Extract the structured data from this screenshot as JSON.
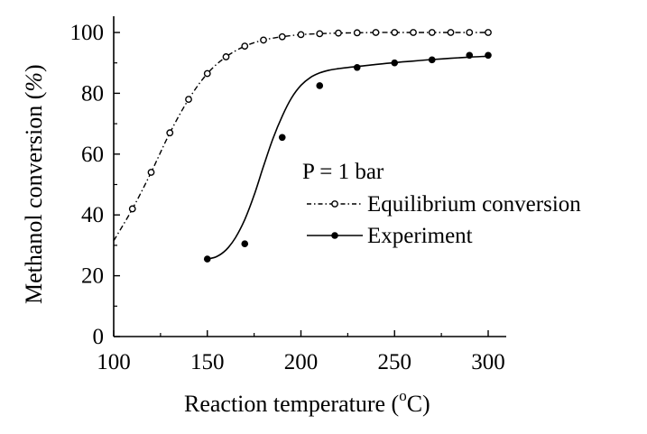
{
  "chart_data": {
    "type": "line",
    "xlabel_main": "Reaction temperature (",
    "xlabel_sup": "o",
    "xlabel_end": "C)",
    "ylabel_main": "Methanol conversion (",
    "ylabel_unit": "%",
    "ylabel_end": ")",
    "xlim": [
      100,
      300
    ],
    "ylim": [
      0,
      100
    ],
    "xticks": [
      100,
      150,
      200,
      250,
      300
    ],
    "yticks": [
      0,
      20,
      40,
      60,
      80,
      100
    ],
    "grid": false,
    "annotation": "P = 1 bar",
    "legend_position": "right",
    "series": [
      {
        "name": "Equilibrium conversion",
        "marker": "open-circle",
        "line": "dash-dot",
        "x": [
          100,
          110,
          120,
          130,
          140,
          150,
          160,
          170,
          180,
          190,
          200,
          210,
          220,
          230,
          240,
          250,
          260,
          270,
          280,
          290,
          300
        ],
        "y": [
          31.5,
          42,
          54,
          67,
          78,
          86.5,
          92,
          95.5,
          97.5,
          98.6,
          99.3,
          99.6,
          99.8,
          99.9,
          100,
          100,
          100,
          100,
          100,
          100,
          100
        ]
      },
      {
        "name": "Experiment",
        "marker": "filled-circle",
        "line": "solid",
        "x": [
          150,
          170,
          190,
          210,
          230,
          250,
          270,
          290,
          300
        ],
        "y": [
          25.5,
          30.5,
          65.5,
          82.5,
          88.5,
          90,
          91,
          92.5,
          92.5
        ],
        "fit_x": [
          150,
          155,
          160,
          165,
          170,
          175,
          180,
          185,
          190,
          195,
          200,
          205,
          210,
          215,
          220,
          225,
          230,
          240,
          250,
          260,
          270,
          280,
          290,
          300
        ],
        "fit_y": [
          25.5,
          26.3,
          28.5,
          32.5,
          38.5,
          46.5,
          56,
          65,
          72.5,
          78.5,
          82.6,
          85.2,
          86.7,
          87.6,
          88.1,
          88.5,
          88.8,
          89.5,
          90.1,
          90.6,
          91.1,
          91.5,
          91.9,
          92.2
        ]
      }
    ]
  }
}
